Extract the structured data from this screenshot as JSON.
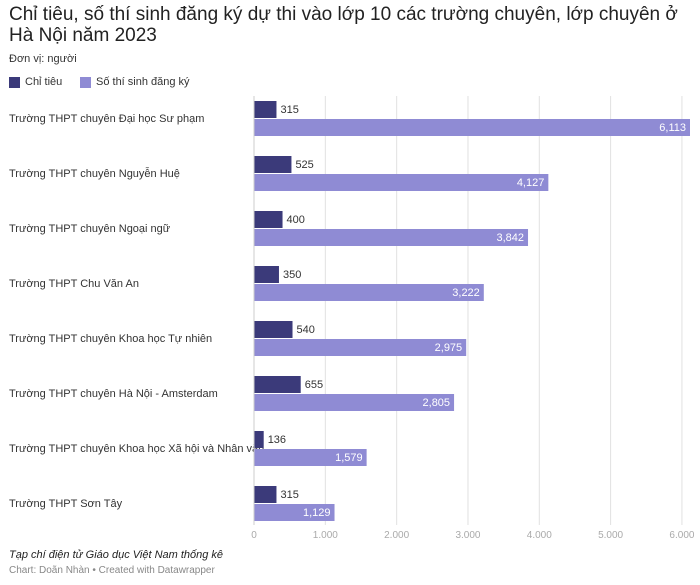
{
  "title": "Chỉ tiêu, số thí sinh đăng ký dự thi vào lớp 10 các trường chuyên, lớp chuyên ở Hà Nội năm 2023",
  "unit_note": "Đơn vị: người",
  "source_note": "Tạp chí điện tử Giáo dục Việt Nam thống kê",
  "credit": "Chart: Doãn Nhàn • Created with Datawrapper",
  "colors": {
    "quota": "#3b3a7a",
    "applicants": "#8f8bd4",
    "grid": "#e1e1e1",
    "tick": "#aaaaaa"
  },
  "chart_data": {
    "type": "bar",
    "orientation": "horizontal",
    "categories": [
      "Trường THPT chuyên Đại học Sư phạm",
      "Trường THPT chuyên Nguyễn Huệ",
      "Trường THPT chuyên Ngoại ngữ",
      "Trường THPT Chu Văn An",
      "Trường THPT chuyên Khoa học Tự nhiên",
      "Trường THPT chuyên Hà Nội - Amsterdam",
      "Trường THPT chuyên Khoa học Xã hội và Nhân văn",
      "Trường THPT Sơn Tây"
    ],
    "series": [
      {
        "name": "Chỉ tiêu",
        "values": [
          315,
          525,
          400,
          350,
          540,
          655,
          136,
          315
        ],
        "labels": [
          "315",
          "525",
          "400",
          "350",
          "540",
          "655",
          "136",
          "315"
        ]
      },
      {
        "name": "Số thí sinh đăng ký",
        "values": [
          6113,
          4127,
          3842,
          3222,
          2975,
          2805,
          1579,
          1129
        ],
        "labels": [
          "6,113",
          "4,127",
          "3,842",
          "3,222",
          "2,975",
          "2,805",
          "1,579",
          "1,129"
        ]
      }
    ],
    "xlim": [
      0,
      6113
    ],
    "xticks": [
      0,
      1000,
      2000,
      3000,
      4000,
      5000,
      6000
    ],
    "xtick_labels": [
      "0",
      "1.000",
      "2.000",
      "3.000",
      "4.000",
      "5.000",
      "6.000"
    ],
    "grid": true,
    "legend_position": "top-left"
  }
}
